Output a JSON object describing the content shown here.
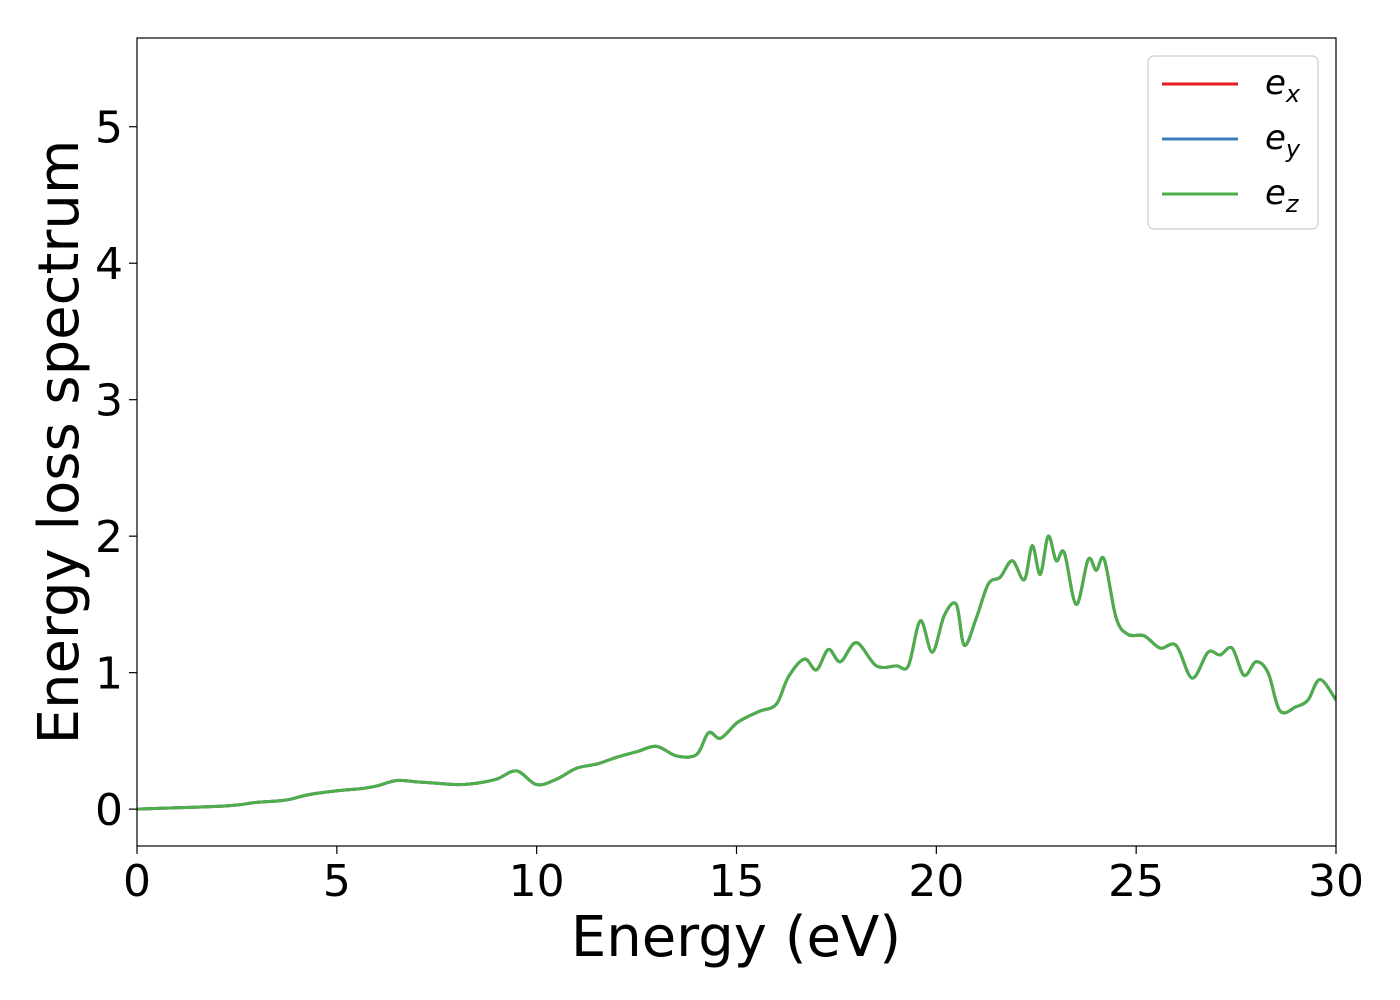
{
  "chart_data": {
    "type": "line",
    "title": "",
    "xlabel": "Energy (eV)",
    "ylabel": "Energy loss spectrum",
    "xlim": [
      0,
      30
    ],
    "ylim": [
      -0.27,
      5.65
    ],
    "xticks": [
      0,
      5,
      10,
      15,
      20,
      25,
      30
    ],
    "yticks": [
      0,
      1,
      2,
      3,
      4,
      5
    ],
    "grid": false,
    "legend_position": "top-right",
    "series": [
      {
        "name": "e",
        "subscript": "x",
        "color": "#e41a1c",
        "x": [
          0,
          1,
          2,
          2.5,
          3,
          3.5,
          3.8,
          4.2,
          4.6,
          5.2,
          5.6,
          6.0,
          6.5,
          7.0,
          7.5,
          8.0,
          8.5,
          9.0,
          9.5,
          10.0,
          10.5,
          11.0,
          11.5,
          12.0,
          12.5,
          13.0,
          13.5,
          14.0,
          14.3,
          14.6,
          15.0,
          15.3,
          15.6,
          16.0,
          16.3,
          16.7,
          17.0,
          17.3,
          17.6,
          18.0,
          18.5,
          19.0,
          19.3,
          19.6,
          19.9,
          20.2,
          20.5,
          20.7,
          21.0,
          21.3,
          21.6,
          21.9,
          22.2,
          22.4,
          22.6,
          22.8,
          23.0,
          23.2,
          23.5,
          23.8,
          24.0,
          24.2,
          24.5,
          24.8,
          25.2,
          25.6,
          26.0,
          26.4,
          26.8,
          27.1,
          27.4,
          27.7,
          28.0,
          28.3,
          28.6,
          29.0,
          29.3,
          29.6,
          30.0
        ],
        "y": [
          0.0,
          0.01,
          0.02,
          0.03,
          0.05,
          0.06,
          0.07,
          0.1,
          0.12,
          0.14,
          0.15,
          0.17,
          0.21,
          0.2,
          0.19,
          0.18,
          0.19,
          0.22,
          0.28,
          0.18,
          0.22,
          0.3,
          0.33,
          0.38,
          0.42,
          0.46,
          0.39,
          0.4,
          0.56,
          0.52,
          0.63,
          0.68,
          0.72,
          0.77,
          0.97,
          1.1,
          1.02,
          1.17,
          1.08,
          1.22,
          1.05,
          1.05,
          1.05,
          1.38,
          1.15,
          1.42,
          1.5,
          1.2,
          1.4,
          1.65,
          1.7,
          1.82,
          1.68,
          1.93,
          1.72,
          2.0,
          1.82,
          1.88,
          1.5,
          1.83,
          1.75,
          1.83,
          1.4,
          1.28,
          1.27,
          1.18,
          1.2,
          0.96,
          1.15,
          1.13,
          1.18,
          0.98,
          1.08,
          1.0,
          0.72,
          0.75,
          0.8,
          0.95,
          0.8
        ]
      },
      {
        "name": "e",
        "subscript": "y",
        "color": "#377eb8",
        "x": [
          0,
          1,
          2,
          2.5,
          3,
          3.5,
          3.8,
          4.2,
          4.6,
          5.2,
          5.6,
          6.0,
          6.5,
          7.0,
          7.5,
          8.0,
          8.5,
          9.0,
          9.5,
          10.0,
          10.5,
          11.0,
          11.5,
          12.0,
          12.5,
          13.0,
          13.5,
          14.0,
          14.3,
          14.6,
          15.0,
          15.3,
          15.6,
          16.0,
          16.3,
          16.7,
          17.0,
          17.3,
          17.6,
          18.0,
          18.5,
          19.0,
          19.3,
          19.6,
          19.9,
          20.2,
          20.5,
          20.7,
          21.0,
          21.3,
          21.6,
          21.9,
          22.2,
          22.4,
          22.6,
          22.8,
          23.0,
          23.2,
          23.5,
          23.8,
          24.0,
          24.2,
          24.5,
          24.8,
          25.2,
          25.6,
          26.0,
          26.4,
          26.8,
          27.1,
          27.4,
          27.7,
          28.0,
          28.3,
          28.6,
          29.0,
          29.3,
          29.6,
          30.0
        ],
        "y": [
          0.0,
          0.01,
          0.02,
          0.03,
          0.05,
          0.06,
          0.07,
          0.1,
          0.12,
          0.14,
          0.15,
          0.17,
          0.21,
          0.2,
          0.19,
          0.18,
          0.19,
          0.22,
          0.28,
          0.18,
          0.22,
          0.3,
          0.33,
          0.38,
          0.42,
          0.46,
          0.39,
          0.4,
          0.56,
          0.52,
          0.63,
          0.68,
          0.72,
          0.77,
          0.97,
          1.1,
          1.02,
          1.17,
          1.08,
          1.22,
          1.05,
          1.05,
          1.05,
          1.38,
          1.15,
          1.42,
          1.5,
          1.2,
          1.4,
          1.65,
          1.7,
          1.82,
          1.68,
          1.93,
          1.72,
          2.0,
          1.82,
          1.88,
          1.5,
          1.83,
          1.75,
          1.83,
          1.4,
          1.28,
          1.27,
          1.18,
          1.2,
          0.96,
          1.15,
          1.13,
          1.18,
          0.98,
          1.08,
          1.0,
          0.72,
          0.75,
          0.8,
          0.95,
          0.8
        ]
      },
      {
        "name": "e",
        "subscript": "z",
        "color": "#4daf4a",
        "x": [
          0,
          1,
          2,
          2.5,
          3,
          3.5,
          3.8,
          4.2,
          4.6,
          5.2,
          5.6,
          6.0,
          6.5,
          7.0,
          7.5,
          8.0,
          8.5,
          9.0,
          9.5,
          10.0,
          10.5,
          11.0,
          11.5,
          12.0,
          12.5,
          13.0,
          13.5,
          14.0,
          14.3,
          14.6,
          15.0,
          15.3,
          15.6,
          16.0,
          16.3,
          16.7,
          17.0,
          17.3,
          17.6,
          18.0,
          18.5,
          19.0,
          19.3,
          19.6,
          19.9,
          20.2,
          20.5,
          20.7,
          21.0,
          21.3,
          21.6,
          21.9,
          22.2,
          22.4,
          22.6,
          22.8,
          23.0,
          23.2,
          23.5,
          23.8,
          24.0,
          24.2,
          24.5,
          24.8,
          25.2,
          25.6,
          26.0,
          26.4,
          26.8,
          27.1,
          27.4,
          27.7,
          28.0,
          28.3,
          28.6,
          29.0,
          29.3,
          29.6,
          30.0
        ],
        "y": [
          0.0,
          0.01,
          0.02,
          0.03,
          0.05,
          0.06,
          0.07,
          0.1,
          0.12,
          0.14,
          0.15,
          0.17,
          0.21,
          0.2,
          0.19,
          0.18,
          0.19,
          0.22,
          0.28,
          0.18,
          0.22,
          0.3,
          0.33,
          0.38,
          0.42,
          0.46,
          0.39,
          0.4,
          0.56,
          0.52,
          0.63,
          0.68,
          0.72,
          0.77,
          0.97,
          1.1,
          1.02,
          1.17,
          1.08,
          1.22,
          1.05,
          1.05,
          1.05,
          1.38,
          1.15,
          1.42,
          1.5,
          1.2,
          1.4,
          1.65,
          1.7,
          1.82,
          1.68,
          1.93,
          1.72,
          2.0,
          1.82,
          1.88,
          1.5,
          1.83,
          1.75,
          1.83,
          1.4,
          1.28,
          1.27,
          1.18,
          1.2,
          0.96,
          1.15,
          1.13,
          1.18,
          0.98,
          1.08,
          1.0,
          0.72,
          0.75,
          0.8,
          0.95,
          0.8
        ]
      }
    ]
  }
}
